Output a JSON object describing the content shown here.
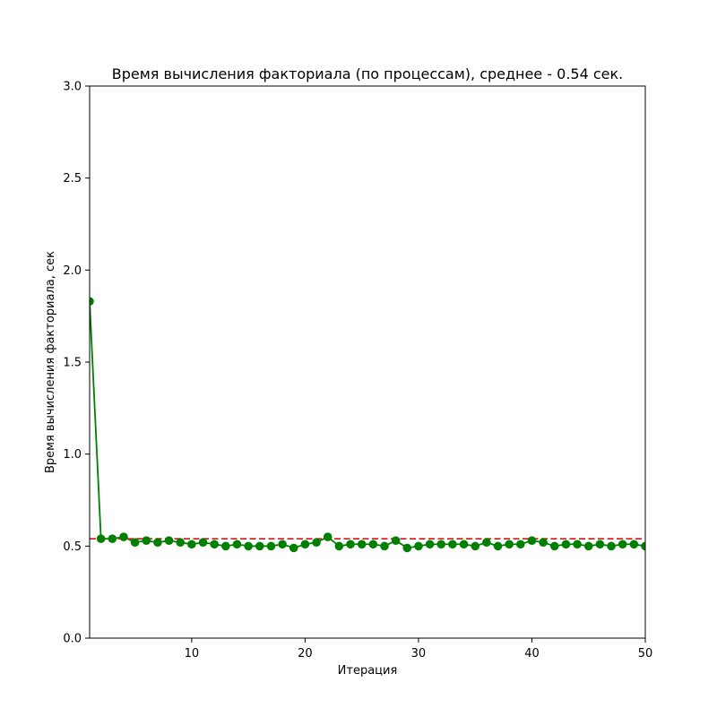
{
  "chart_data": {
    "type": "line",
    "title": "Время вычисления факториала (по процессам), среднее - 0.54 сек.",
    "xlabel": "Итерация",
    "ylabel": "Время вычисления факториала, сек",
    "xlim": [
      1,
      50
    ],
    "ylim": [
      0,
      3.0
    ],
    "xticks": [
      10,
      20,
      30,
      40,
      50
    ],
    "yticks": [
      "0.0",
      "0.5",
      "1.0",
      "1.5",
      "2.0",
      "2.5",
      "3.0"
    ],
    "grid": false,
    "series": [
      {
        "color": "#008000",
        "marker": "circle",
        "x": [
          1,
          2,
          3,
          4,
          5,
          6,
          7,
          8,
          9,
          10,
          11,
          12,
          13,
          14,
          15,
          16,
          17,
          18,
          19,
          20,
          21,
          22,
          23,
          24,
          25,
          26,
          27,
          28,
          29,
          30,
          31,
          32,
          33,
          34,
          35,
          36,
          37,
          38,
          39,
          40,
          41,
          42,
          43,
          44,
          45,
          46,
          47,
          48,
          49,
          50
        ],
        "y": [
          1.83,
          0.54,
          0.54,
          0.55,
          0.52,
          0.53,
          0.52,
          0.53,
          0.52,
          0.51,
          0.52,
          0.51,
          0.5,
          0.51,
          0.5,
          0.5,
          0.5,
          0.51,
          0.49,
          0.51,
          0.52,
          0.55,
          0.5,
          0.51,
          0.51,
          0.51,
          0.5,
          0.53,
          0.49,
          0.5,
          0.51,
          0.51,
          0.51,
          0.51,
          0.5,
          0.52,
          0.5,
          0.51,
          0.51,
          0.53,
          0.52,
          0.5,
          0.51,
          0.51,
          0.5,
          0.51,
          0.5,
          0.51,
          0.51,
          0.5
        ]
      }
    ],
    "reference_line": {
      "type": "horizontal",
      "y": 0.54,
      "color": "#d62728",
      "style": "dashed"
    }
  }
}
